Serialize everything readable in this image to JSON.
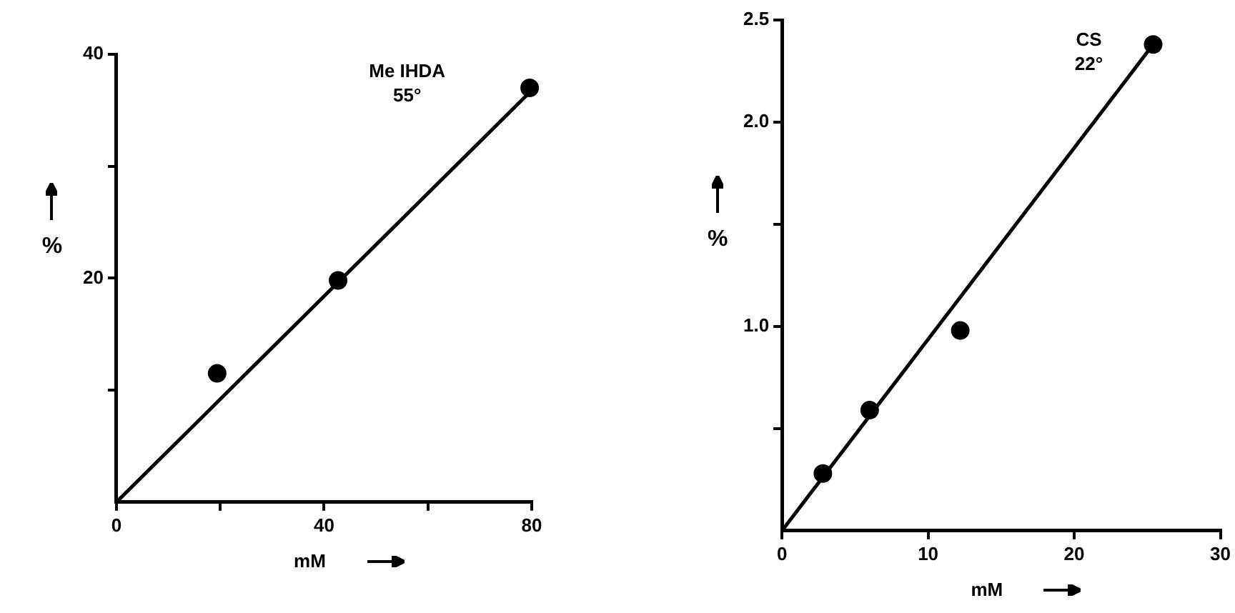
{
  "chart_data": [
    {
      "type": "scatter",
      "xlabel": "mM",
      "ylabel": "%",
      "annotations": [
        "Me IHDA",
        "55°"
      ],
      "marker": "circle",
      "grid": false,
      "legend": false,
      "xlim": [
        0,
        80
      ],
      "xticks": [
        0,
        {
          "value": 20,
          "label": null
        },
        40,
        {
          "value": 60,
          "label": null
        },
        80
      ],
      "ylim": [
        0,
        40
      ],
      "yticks": [
        {
          "value": 10,
          "label": null
        },
        20,
        {
          "value": 30,
          "label": null
        },
        40
      ],
      "series": [
        {
          "type": "scatter",
          "color": "#000000",
          "x": [
            19.4,
            42.7,
            79.6
          ],
          "values": [
            11.5,
            19.8,
            37.0
          ]
        },
        {
          "type": "line",
          "color": "#000000",
          "marker": "none",
          "x": [
            0,
            79.6
          ],
          "values": [
            0,
            36.6
          ]
        }
      ]
    },
    {
      "type": "scatter",
      "xlabel": "mM",
      "ylabel": "%",
      "annotations": [
        "CS",
        "22°"
      ],
      "marker": "circle",
      "grid": false,
      "legend": false,
      "xlim": [
        0,
        30
      ],
      "xticks": [
        0,
        10,
        20,
        30
      ],
      "ylim": [
        0,
        2.5
      ],
      "yticks": [
        {
          "value": 0.5,
          "label": null
        },
        {
          "value": 1,
          "label": "1.0"
        },
        {
          "value": 1.5,
          "label": null
        },
        {
          "value": 2,
          "label": "2.0"
        },
        2.5
      ],
      "series": [
        {
          "type": "scatter",
          "color": "#000000",
          "x": [
            2.8,
            6.0,
            12.2,
            25.4
          ],
          "values": [
            0.28,
            0.59,
            0.98,
            2.38
          ]
        },
        {
          "type": "line",
          "color": "#000000",
          "marker": "none",
          "x": [
            0,
            25.4
          ],
          "values": [
            0,
            2.38
          ]
        }
      ]
    }
  ]
}
